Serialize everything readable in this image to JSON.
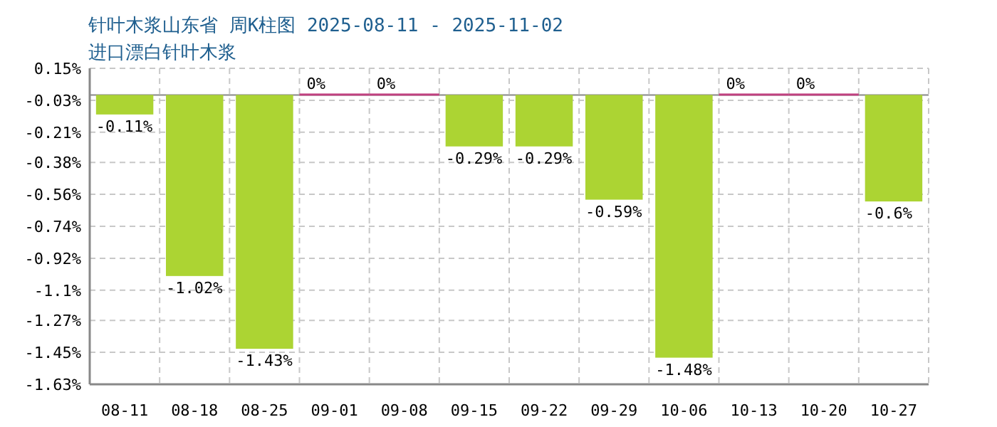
{
  "chart_data": {
    "type": "bar",
    "title": "针叶木浆山东省 周K柱图 2025-08-11 - 2025-11-02",
    "subtitle": "进口漂白针叶木浆",
    "categories": [
      "08-11",
      "08-18",
      "08-25",
      "09-01",
      "09-08",
      "09-15",
      "09-22",
      "09-29",
      "10-06",
      "10-13",
      "10-20",
      "10-27"
    ],
    "values": [
      -0.11,
      -1.02,
      -1.43,
      0,
      0,
      -0.29,
      -0.29,
      -0.59,
      -1.48,
      0,
      0,
      -0.6
    ],
    "value_labels": [
      "-0.11%",
      "-1.02%",
      "-1.43%",
      "0%",
      "0%",
      "-0.29%",
      "-0.29%",
      "-0.59%",
      "-1.48%",
      "0%",
      "0%",
      "-0.6%"
    ],
    "colors": [
      "#acd433",
      "#acd433",
      "#acd433",
      "#c0407f",
      "#c0407f",
      "#acd433",
      "#acd433",
      "#acd433",
      "#acd433",
      "#c0407f",
      "#c0407f",
      "#acd433"
    ],
    "ylim": [
      -1.63,
      0.15
    ],
    "yticks": [
      {
        "value": 0.15,
        "label": "0.15%"
      },
      {
        "value": -0.03,
        "label": "-0.03%"
      },
      {
        "value": -0.21,
        "label": "-0.21%"
      },
      {
        "value": -0.38,
        "label": "-0.38%"
      },
      {
        "value": -0.56,
        "label": "-0.56%"
      },
      {
        "value": -0.74,
        "label": "-0.74%"
      },
      {
        "value": -0.92,
        "label": "-0.92%"
      },
      {
        "value": -1.1,
        "label": "-1.1%"
      },
      {
        "value": -1.27,
        "label": "-1.27%"
      },
      {
        "value": -1.45,
        "label": "-1.45%"
      },
      {
        "value": -1.63,
        "label": "-1.63%"
      }
    ],
    "grid": true
  }
}
